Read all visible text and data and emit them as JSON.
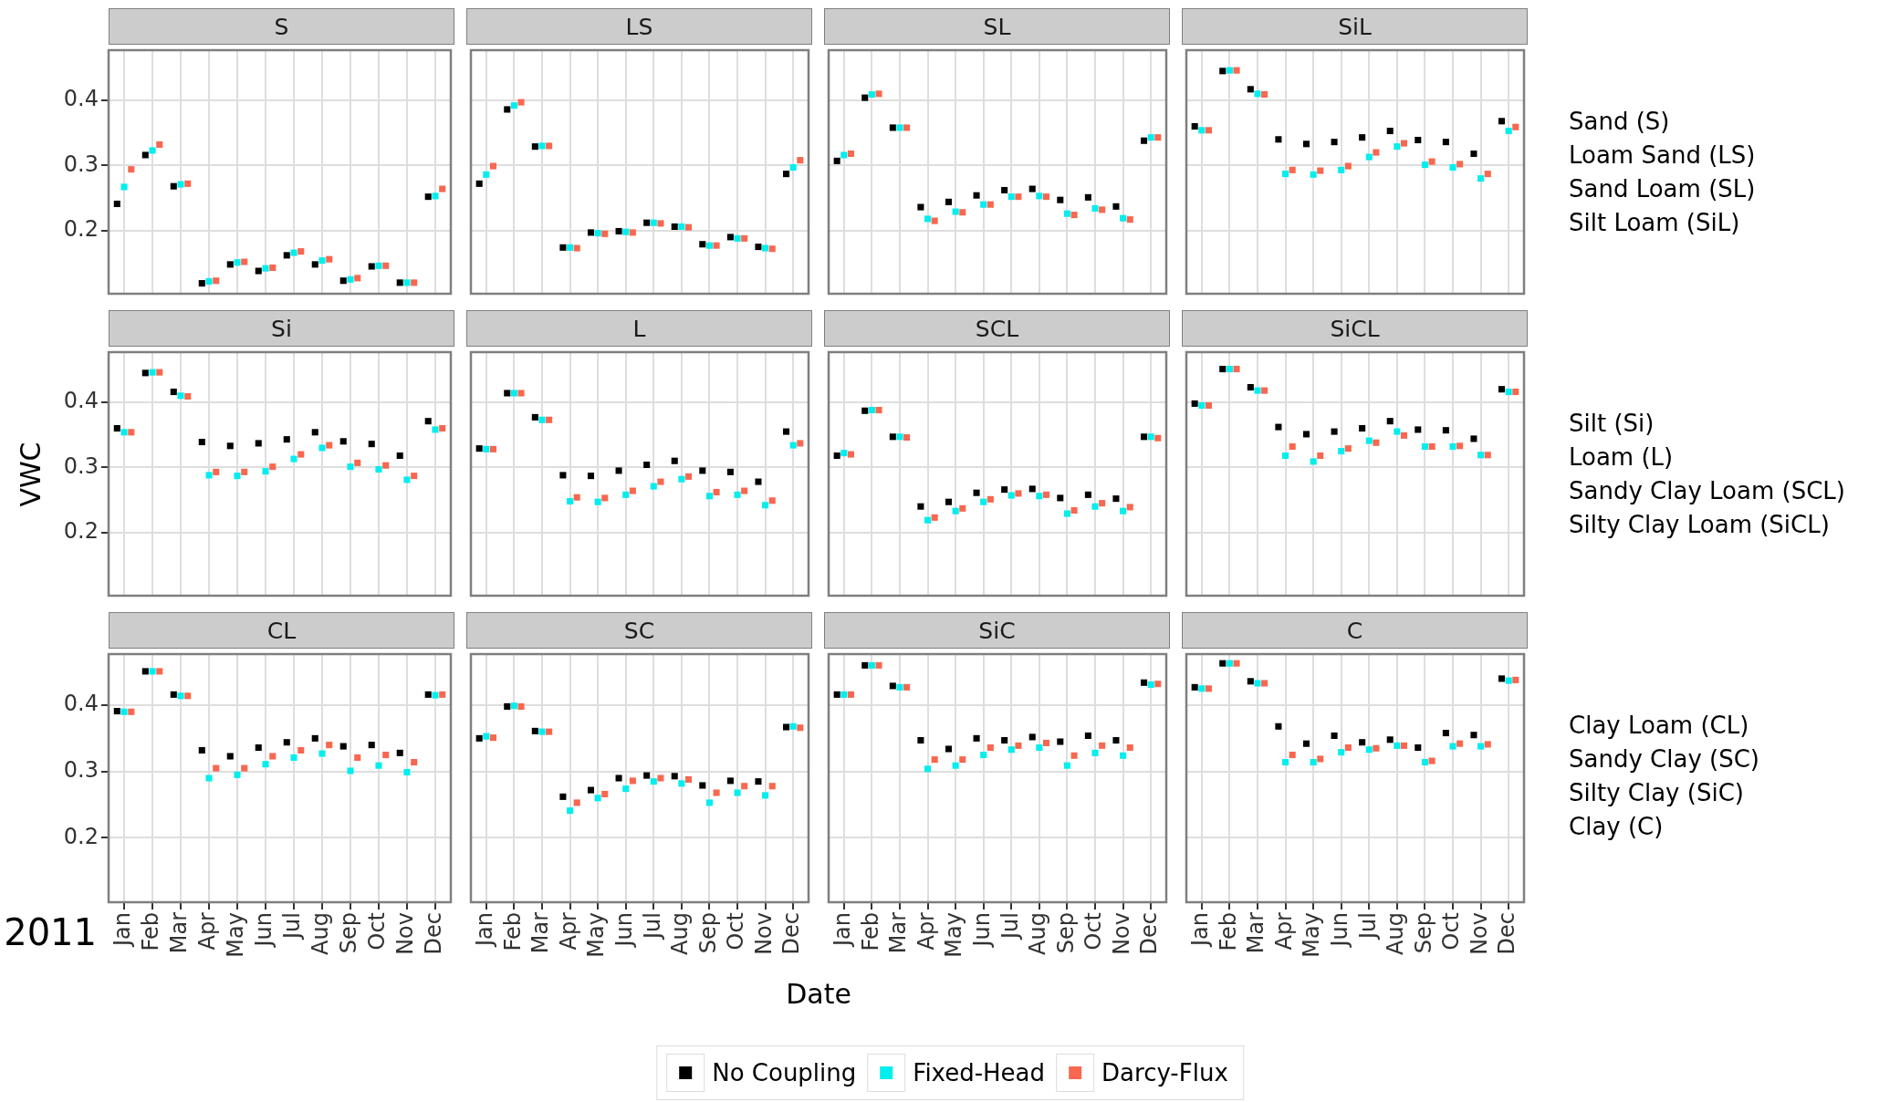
{
  "chart_data": [
    {
      "type": "scatter",
      "title": "S",
      "categories": [
        "Jan",
        "Feb",
        "Mar",
        "Apr",
        "May",
        "Jun",
        "Jul",
        "Aug",
        "Sep",
        "Oct",
        "Nov",
        "Dec"
      ],
      "series": [
        {
          "name": "No Coupling",
          "color": "#000000",
          "values": [
            0.241,
            0.316,
            0.268,
            0.119,
            0.148,
            0.138,
            0.162,
            0.148,
            0.123,
            0.145,
            0.12,
            0.252
          ]
        },
        {
          "name": "Fixed-Head",
          "color": "#00eeee",
          "values": [
            0.267,
            0.323,
            0.271,
            0.122,
            0.151,
            0.142,
            0.166,
            0.154,
            0.125,
            0.146,
            0.12,
            0.253
          ]
        },
        {
          "name": "Darcy-Flux",
          "color": "#f8674f",
          "values": [
            0.294,
            0.332,
            0.272,
            0.123,
            0.152,
            0.143,
            0.168,
            0.156,
            0.127,
            0.146,
            0.12,
            0.264
          ]
        }
      ],
      "ylim": [
        0.103,
        0.477
      ],
      "yticks": [
        0.2,
        0.3,
        0.4
      ],
      "grid": true,
      "marker": "square",
      "tick_labels": "y",
      "legend": "bottom"
    },
    {
      "type": "scatter",
      "title": "LS",
      "categories": [
        "Jan",
        "Feb",
        "Mar",
        "Apr",
        "May",
        "Jun",
        "Jul",
        "Aug",
        "Sep",
        "Oct",
        "Nov",
        "Dec"
      ],
      "series": [
        {
          "name": "No Coupling",
          "color": "#000000",
          "values": [
            0.272,
            0.386,
            0.329,
            0.174,
            0.197,
            0.199,
            0.212,
            0.206,
            0.179,
            0.19,
            0.175,
            0.287
          ]
        },
        {
          "name": "Fixed-Head",
          "color": "#00eeee",
          "values": [
            0.286,
            0.392,
            0.33,
            0.174,
            0.196,
            0.198,
            0.212,
            0.206,
            0.177,
            0.188,
            0.173,
            0.297
          ]
        },
        {
          "name": "Darcy-Flux",
          "color": "#f8674f",
          "values": [
            0.299,
            0.397,
            0.33,
            0.173,
            0.195,
            0.197,
            0.211,
            0.205,
            0.177,
            0.188,
            0.172,
            0.308
          ]
        }
      ],
      "ylim": [
        0.103,
        0.477
      ],
      "yticks": [
        0.2,
        0.3,
        0.4
      ],
      "grid": true,
      "marker": "square",
      "tick_labels": false,
      "legend": "bottom"
    },
    {
      "type": "scatter",
      "title": "SL",
      "categories": [
        "Jan",
        "Feb",
        "Mar",
        "Apr",
        "May",
        "Jun",
        "Jul",
        "Aug",
        "Sep",
        "Oct",
        "Nov",
        "Dec"
      ],
      "series": [
        {
          "name": "No Coupling",
          "color": "#000000",
          "values": [
            0.307,
            0.404,
            0.358,
            0.236,
            0.244,
            0.254,
            0.262,
            0.264,
            0.247,
            0.251,
            0.237,
            0.338
          ]
        },
        {
          "name": "Fixed-Head",
          "color": "#00eeee",
          "values": [
            0.316,
            0.409,
            0.358,
            0.218,
            0.229,
            0.24,
            0.252,
            0.253,
            0.226,
            0.234,
            0.219,
            0.343
          ]
        },
        {
          "name": "Darcy-Flux",
          "color": "#f8674f",
          "values": [
            0.318,
            0.41,
            0.358,
            0.215,
            0.228,
            0.24,
            0.252,
            0.252,
            0.224,
            0.232,
            0.217,
            0.343
          ]
        }
      ],
      "ylim": [
        0.103,
        0.477
      ],
      "yticks": [
        0.2,
        0.3,
        0.4
      ],
      "grid": true,
      "marker": "square",
      "tick_labels": false,
      "legend": "bottom"
    },
    {
      "type": "scatter",
      "title": "SiL",
      "categories": [
        "Jan",
        "Feb",
        "Mar",
        "Apr",
        "May",
        "Jun",
        "Jul",
        "Aug",
        "Sep",
        "Oct",
        "Nov",
        "Dec"
      ],
      "series": [
        {
          "name": "No Coupling",
          "color": "#000000",
          "values": [
            0.36,
            0.445,
            0.417,
            0.34,
            0.333,
            0.336,
            0.343,
            0.353,
            0.339,
            0.336,
            0.318,
            0.368
          ]
        },
        {
          "name": "Fixed-Head",
          "color": "#00eeee",
          "values": [
            0.354,
            0.446,
            0.41,
            0.287,
            0.286,
            0.293,
            0.313,
            0.329,
            0.301,
            0.297,
            0.28,
            0.353
          ]
        },
        {
          "name": "Darcy-Flux",
          "color": "#f8674f",
          "values": [
            0.354,
            0.446,
            0.409,
            0.293,
            0.292,
            0.299,
            0.32,
            0.334,
            0.306,
            0.302,
            0.287,
            0.359
          ]
        }
      ],
      "ylim": [
        0.103,
        0.477
      ],
      "yticks": [
        0.2,
        0.3,
        0.4
      ],
      "grid": true,
      "marker": "square",
      "tick_labels": false,
      "legend": "bottom",
      "annotations": [
        "Sand (S)",
        "Loam Sand (LS)",
        "Sand Loam (SL)",
        "Silt Loam (SiL)"
      ]
    },
    {
      "type": "scatter",
      "title": "Si",
      "categories": [
        "Jan",
        "Feb",
        "Mar",
        "Apr",
        "May",
        "Jun",
        "Jul",
        "Aug",
        "Sep",
        "Oct",
        "Nov",
        "Dec"
      ],
      "series": [
        {
          "name": "No Coupling",
          "color": "#000000",
          "values": [
            0.36,
            0.445,
            0.416,
            0.339,
            0.333,
            0.337,
            0.343,
            0.354,
            0.34,
            0.336,
            0.318,
            0.371
          ]
        },
        {
          "name": "Fixed-Head",
          "color": "#00eeee",
          "values": [
            0.354,
            0.446,
            0.41,
            0.288,
            0.287,
            0.294,
            0.313,
            0.33,
            0.301,
            0.297,
            0.281,
            0.358
          ]
        },
        {
          "name": "Darcy-Flux",
          "color": "#f8674f",
          "values": [
            0.354,
            0.446,
            0.409,
            0.293,
            0.293,
            0.301,
            0.32,
            0.334,
            0.307,
            0.303,
            0.287,
            0.36
          ]
        }
      ],
      "ylim": [
        0.103,
        0.477
      ],
      "yticks": [
        0.2,
        0.3,
        0.4
      ],
      "grid": true,
      "marker": "square",
      "tick_labels": "y",
      "legend": "bottom",
      "ylabel": "VWC"
    },
    {
      "type": "scatter",
      "title": "L",
      "categories": [
        "Jan",
        "Feb",
        "Mar",
        "Apr",
        "May",
        "Jun",
        "Jul",
        "Aug",
        "Sep",
        "Oct",
        "Nov",
        "Dec"
      ],
      "series": [
        {
          "name": "No Coupling",
          "color": "#000000",
          "values": [
            0.329,
            0.414,
            0.377,
            0.288,
            0.287,
            0.295,
            0.304,
            0.31,
            0.295,
            0.293,
            0.278,
            0.355
          ]
        },
        {
          "name": "Fixed-Head",
          "color": "#00eeee",
          "values": [
            0.328,
            0.414,
            0.373,
            0.248,
            0.247,
            0.258,
            0.271,
            0.282,
            0.256,
            0.258,
            0.242,
            0.334
          ]
        },
        {
          "name": "Darcy-Flux",
          "color": "#f8674f",
          "values": [
            0.328,
            0.414,
            0.373,
            0.254,
            0.253,
            0.264,
            0.278,
            0.286,
            0.262,
            0.264,
            0.249,
            0.337
          ]
        }
      ],
      "ylim": [
        0.103,
        0.477
      ],
      "yticks": [
        0.2,
        0.3,
        0.4
      ],
      "grid": true,
      "marker": "square",
      "tick_labels": false,
      "legend": "bottom"
    },
    {
      "type": "scatter",
      "title": "SCL",
      "categories": [
        "Jan",
        "Feb",
        "Mar",
        "Apr",
        "May",
        "Jun",
        "Jul",
        "Aug",
        "Sep",
        "Oct",
        "Nov",
        "Dec"
      ],
      "series": [
        {
          "name": "No Coupling",
          "color": "#000000",
          "values": [
            0.318,
            0.387,
            0.347,
            0.24,
            0.247,
            0.261,
            0.266,
            0.267,
            0.253,
            0.258,
            0.252,
            0.347
          ]
        },
        {
          "name": "Fixed-Head",
          "color": "#00eeee",
          "values": [
            0.322,
            0.388,
            0.347,
            0.219,
            0.233,
            0.247,
            0.257,
            0.256,
            0.229,
            0.24,
            0.233,
            0.347
          ]
        },
        {
          "name": "Darcy-Flux",
          "color": "#f8674f",
          "values": [
            0.32,
            0.388,
            0.346,
            0.223,
            0.237,
            0.251,
            0.26,
            0.258,
            0.234,
            0.245,
            0.239,
            0.345
          ]
        }
      ],
      "ylim": [
        0.103,
        0.477
      ],
      "yticks": [
        0.2,
        0.3,
        0.4
      ],
      "grid": true,
      "marker": "square",
      "tick_labels": false,
      "legend": "bottom"
    },
    {
      "type": "scatter",
      "title": "SiCL",
      "categories": [
        "Jan",
        "Feb",
        "Mar",
        "Apr",
        "May",
        "Jun",
        "Jul",
        "Aug",
        "Sep",
        "Oct",
        "Nov",
        "Dec"
      ],
      "series": [
        {
          "name": "No Coupling",
          "color": "#000000",
          "values": [
            0.398,
            0.451,
            0.423,
            0.362,
            0.351,
            0.355,
            0.36,
            0.371,
            0.358,
            0.357,
            0.344,
            0.42
          ]
        },
        {
          "name": "Fixed-Head",
          "color": "#00eeee",
          "values": [
            0.395,
            0.451,
            0.418,
            0.318,
            0.309,
            0.325,
            0.341,
            0.355,
            0.332,
            0.332,
            0.319,
            0.416
          ]
        },
        {
          "name": "Darcy-Flux",
          "color": "#f8674f",
          "values": [
            0.395,
            0.451,
            0.418,
            0.332,
            0.318,
            0.329,
            0.338,
            0.349,
            0.332,
            0.333,
            0.319,
            0.416
          ]
        }
      ],
      "ylim": [
        0.103,
        0.477
      ],
      "yticks": [
        0.2,
        0.3,
        0.4
      ],
      "grid": true,
      "marker": "square",
      "tick_labels": false,
      "legend": "bottom",
      "annotations": [
        "Silt (Si)",
        "Loam (L)",
        "Sandy Clay Loam (SCL)",
        "Silty Clay Loam (SiCL)"
      ]
    },
    {
      "type": "scatter",
      "title": "CL",
      "categories": [
        "Jan",
        "Feb",
        "Mar",
        "Apr",
        "May",
        "Jun",
        "Jul",
        "Aug",
        "Sep",
        "Oct",
        "Nov",
        "Dec"
      ],
      "series": [
        {
          "name": "No Coupling",
          "color": "#000000",
          "values": [
            0.391,
            0.451,
            0.416,
            0.332,
            0.323,
            0.336,
            0.344,
            0.35,
            0.338,
            0.34,
            0.328,
            0.416
          ]
        },
        {
          "name": "Fixed-Head",
          "color": "#00eeee",
          "values": [
            0.39,
            0.451,
            0.414,
            0.29,
            0.295,
            0.311,
            0.321,
            0.327,
            0.301,
            0.309,
            0.299,
            0.415
          ]
        },
        {
          "name": "Darcy-Flux",
          "color": "#f8674f",
          "values": [
            0.39,
            0.451,
            0.414,
            0.305,
            0.305,
            0.323,
            0.332,
            0.34,
            0.321,
            0.325,
            0.314,
            0.416
          ]
        }
      ],
      "ylim": [
        0.103,
        0.477
      ],
      "yticks": [
        0.2,
        0.3,
        0.4
      ],
      "grid": true,
      "marker": "square",
      "legend": "bottom",
      "annotations": [
        "2011"
      ]
    },
    {
      "type": "scatter",
      "title": "SC",
      "categories": [
        "Jan",
        "Feb",
        "Mar",
        "Apr",
        "May",
        "Jun",
        "Jul",
        "Aug",
        "Sep",
        "Oct",
        "Nov",
        "Dec"
      ],
      "series": [
        {
          "name": "No Coupling",
          "color": "#000000",
          "values": [
            0.35,
            0.398,
            0.361,
            0.262,
            0.272,
            0.29,
            0.294,
            0.293,
            0.279,
            0.286,
            0.285,
            0.367
          ]
        },
        {
          "name": "Fixed-Head",
          "color": "#00eeee",
          "values": [
            0.353,
            0.399,
            0.36,
            0.241,
            0.26,
            0.274,
            0.285,
            0.282,
            0.253,
            0.268,
            0.264,
            0.368
          ]
        },
        {
          "name": "Darcy-Flux",
          "color": "#f8674f",
          "values": [
            0.351,
            0.398,
            0.36,
            0.253,
            0.266,
            0.286,
            0.29,
            0.288,
            0.268,
            0.278,
            0.278,
            0.366
          ]
        }
      ],
      "ylim": [
        0.103,
        0.477
      ],
      "yticks": [
        0.2,
        0.3,
        0.4
      ],
      "grid": true,
      "marker": "square",
      "tick_labels": "x",
      "legend": "bottom",
      "xlabel": "Date"
    },
    {
      "type": "scatter",
      "title": "SiC",
      "categories": [
        "Jan",
        "Feb",
        "Mar",
        "Apr",
        "May",
        "Jun",
        "Jul",
        "Aug",
        "Sep",
        "Oct",
        "Nov",
        "Dec"
      ],
      "series": [
        {
          "name": "No Coupling",
          "color": "#000000",
          "values": [
            0.416,
            0.46,
            0.429,
            0.347,
            0.334,
            0.35,
            0.347,
            0.352,
            0.345,
            0.354,
            0.347,
            0.434
          ]
        },
        {
          "name": "Fixed-Head",
          "color": "#00eeee",
          "values": [
            0.416,
            0.46,
            0.427,
            0.304,
            0.309,
            0.325,
            0.333,
            0.336,
            0.309,
            0.328,
            0.324,
            0.431
          ]
        },
        {
          "name": "Darcy-Flux",
          "color": "#f8674f",
          "values": [
            0.416,
            0.46,
            0.427,
            0.318,
            0.318,
            0.336,
            0.339,
            0.343,
            0.324,
            0.339,
            0.336,
            0.432
          ]
        }
      ],
      "ylim": [
        0.103,
        0.477
      ],
      "yticks": [
        0.2,
        0.3,
        0.4
      ],
      "grid": true,
      "marker": "square",
      "tick_labels": "x",
      "legend": "bottom"
    },
    {
      "type": "scatter",
      "title": "C",
      "categories": [
        "Jan",
        "Feb",
        "Mar",
        "Apr",
        "May",
        "Jun",
        "Jul",
        "Aug",
        "Sep",
        "Oct",
        "Nov",
        "Dec"
      ],
      "series": [
        {
          "name": "No Coupling",
          "color": "#000000",
          "values": [
            0.427,
            0.463,
            0.436,
            0.368,
            0.342,
            0.354,
            0.344,
            0.348,
            0.336,
            0.358,
            0.355,
            0.44
          ]
        },
        {
          "name": "Fixed-Head",
          "color": "#00eeee",
          "values": [
            0.425,
            0.463,
            0.433,
            0.314,
            0.314,
            0.329,
            0.333,
            0.339,
            0.314,
            0.338,
            0.338,
            0.437
          ]
        },
        {
          "name": "Darcy-Flux",
          "color": "#f8674f",
          "values": [
            0.425,
            0.463,
            0.433,
            0.325,
            0.319,
            0.336,
            0.335,
            0.339,
            0.316,
            0.342,
            0.341,
            0.438
          ]
        }
      ],
      "ylim": [
        0.103,
        0.477
      ],
      "yticks": [
        0.2,
        0.3,
        0.4
      ],
      "grid": true,
      "marker": "square",
      "tick_labels": "x",
      "legend": "bottom",
      "annotations": [
        "Clay Loam (CL)",
        "Sandy Clay (SC)",
        "Silty Clay (SiC)",
        "Clay (C)"
      ]
    }
  ]
}
